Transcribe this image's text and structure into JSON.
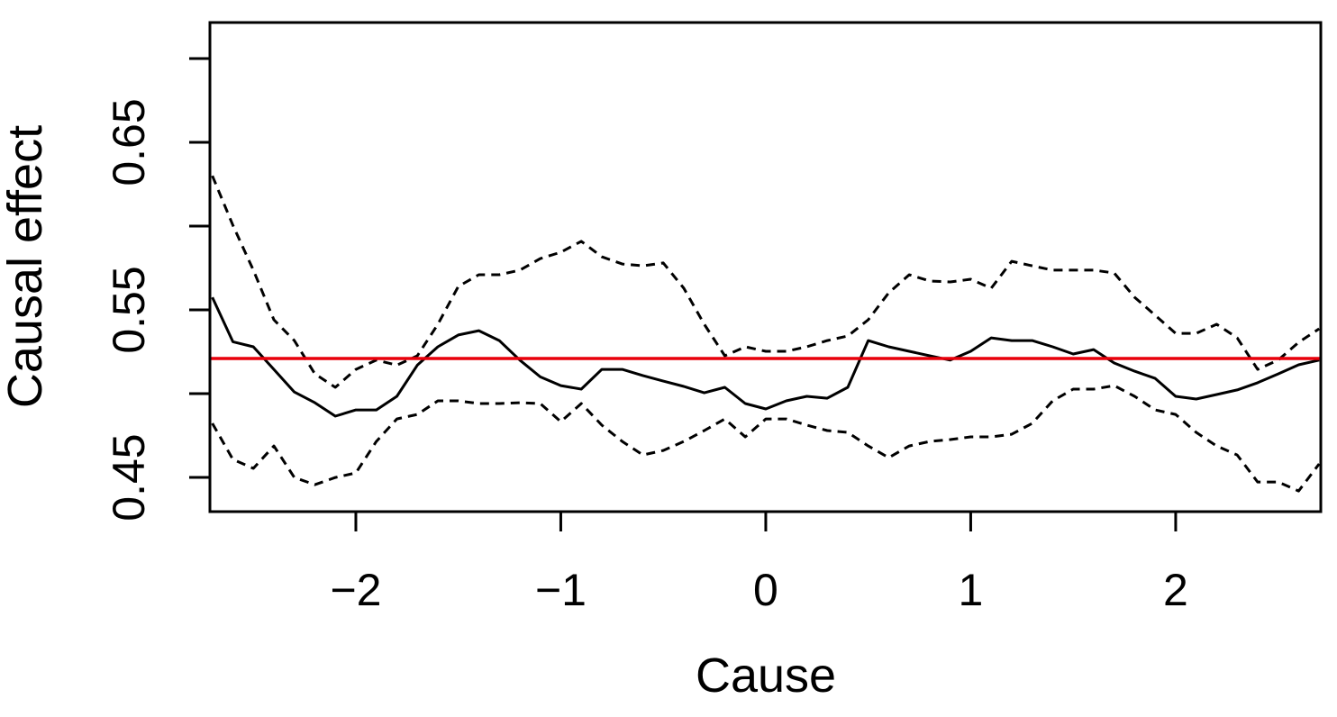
{
  "chart_data": {
    "type": "line",
    "xlabel": "Cause",
    "ylabel": "Causal effect",
    "xlim": [
      -2.712,
      2.708
    ],
    "ylim": [
      0.4296,
      0.7215
    ],
    "xticks": [
      {
        "value": -2,
        "label": "−2"
      },
      {
        "value": -1,
        "label": "−1"
      },
      0,
      1,
      2
    ],
    "yticks": [
      0.45,
      0.55,
      0.65
    ],
    "yminor_ticks": [
      0.5,
      0.6,
      0.7
    ],
    "x": [
      -2.7,
      -2.6,
      -2.5,
      -2.4,
      -2.3,
      -2.2,
      -2.1,
      -2.0,
      -1.9,
      -1.8,
      -1.7,
      -1.6,
      -1.5,
      -1.4,
      -1.3,
      -1.2,
      -1.1,
      -1.0,
      -0.9,
      -0.8,
      -0.7,
      -0.6,
      -0.5,
      -0.4,
      -0.3,
      -0.2,
      -0.1,
      0.0,
      0.1,
      0.2,
      0.3,
      0.4,
      0.5,
      0.6,
      0.7,
      0.8,
      0.9,
      1.0,
      1.1,
      1.2,
      1.3,
      1.4,
      1.5,
      1.6,
      1.7,
      1.8,
      1.9,
      2.0,
      2.1,
      2.2,
      2.3,
      2.4,
      2.5,
      2.6,
      2.7
    ],
    "series": [
      {
        "color": "#000000",
        "dash": false,
        "values": [
          0.5575,
          0.531,
          0.528,
          0.5145,
          0.501,
          0.4946,
          0.4866,
          0.4903,
          0.4903,
          0.4984,
          0.517,
          0.528,
          0.535,
          0.5376,
          0.5317,
          0.52,
          0.51,
          0.5048,
          0.5027,
          0.5145,
          0.5145,
          0.5108,
          0.5075,
          0.5043,
          0.5005,
          0.5038,
          0.4941,
          0.4909,
          0.4957,
          0.4984,
          0.4973,
          0.5038,
          0.5317,
          0.528,
          0.5253,
          0.5226,
          0.52,
          0.5253,
          0.5333,
          0.5317,
          0.5317,
          0.528,
          0.5237,
          0.5263,
          0.5183,
          0.5134,
          0.5091,
          0.4984,
          0.4968,
          0.4995,
          0.5022,
          0.5065,
          0.5118,
          0.5172,
          0.52
        ]
      },
      {
        "color": "#000000",
        "dash": true,
        "values": [
          0.63,
          0.6005,
          0.5737,
          0.5441,
          0.5317,
          0.5118,
          0.5038,
          0.5145,
          0.52,
          0.517,
          0.5226,
          0.5414,
          0.564,
          0.571,
          0.571,
          0.5737,
          0.5806,
          0.5844,
          0.5909,
          0.5817,
          0.5774,
          0.5763,
          0.578,
          0.5629,
          0.5414,
          0.5226,
          0.528,
          0.5253,
          0.5253,
          0.528,
          0.5317,
          0.5344,
          0.5441,
          0.5602,
          0.571,
          0.5672,
          0.5667,
          0.5683,
          0.5629,
          0.579,
          0.5763,
          0.5737,
          0.5737,
          0.5737,
          0.572,
          0.5575,
          0.5468,
          0.536,
          0.536,
          0.5414,
          0.5333,
          0.5145,
          0.52,
          0.5306,
          0.5387
        ]
      },
      {
        "color": "#000000",
        "dash": true,
        "values": [
          0.4823,
          0.4608,
          0.4554,
          0.4688,
          0.45,
          0.4457,
          0.45,
          0.4527,
          0.4715,
          0.4849,
          0.4876,
          0.4957,
          0.4957,
          0.4941,
          0.4941,
          0.4946,
          0.4941,
          0.4833,
          0.4941,
          0.4812,
          0.4715,
          0.4634,
          0.4661,
          0.4715,
          0.478,
          0.4849,
          0.4742,
          0.4849,
          0.4849,
          0.4812,
          0.478,
          0.4769,
          0.4688,
          0.4618,
          0.4688,
          0.4715,
          0.4726,
          0.4742,
          0.4742,
          0.4758,
          0.4823,
          0.4957,
          0.5027,
          0.5027,
          0.5048,
          0.4984,
          0.4903,
          0.4876,
          0.4769,
          0.4688,
          0.4634,
          0.4473,
          0.4473,
          0.4419,
          0.4581
        ]
      }
    ],
    "hline": {
      "value": 0.521,
      "color": "#e8000b"
    }
  }
}
